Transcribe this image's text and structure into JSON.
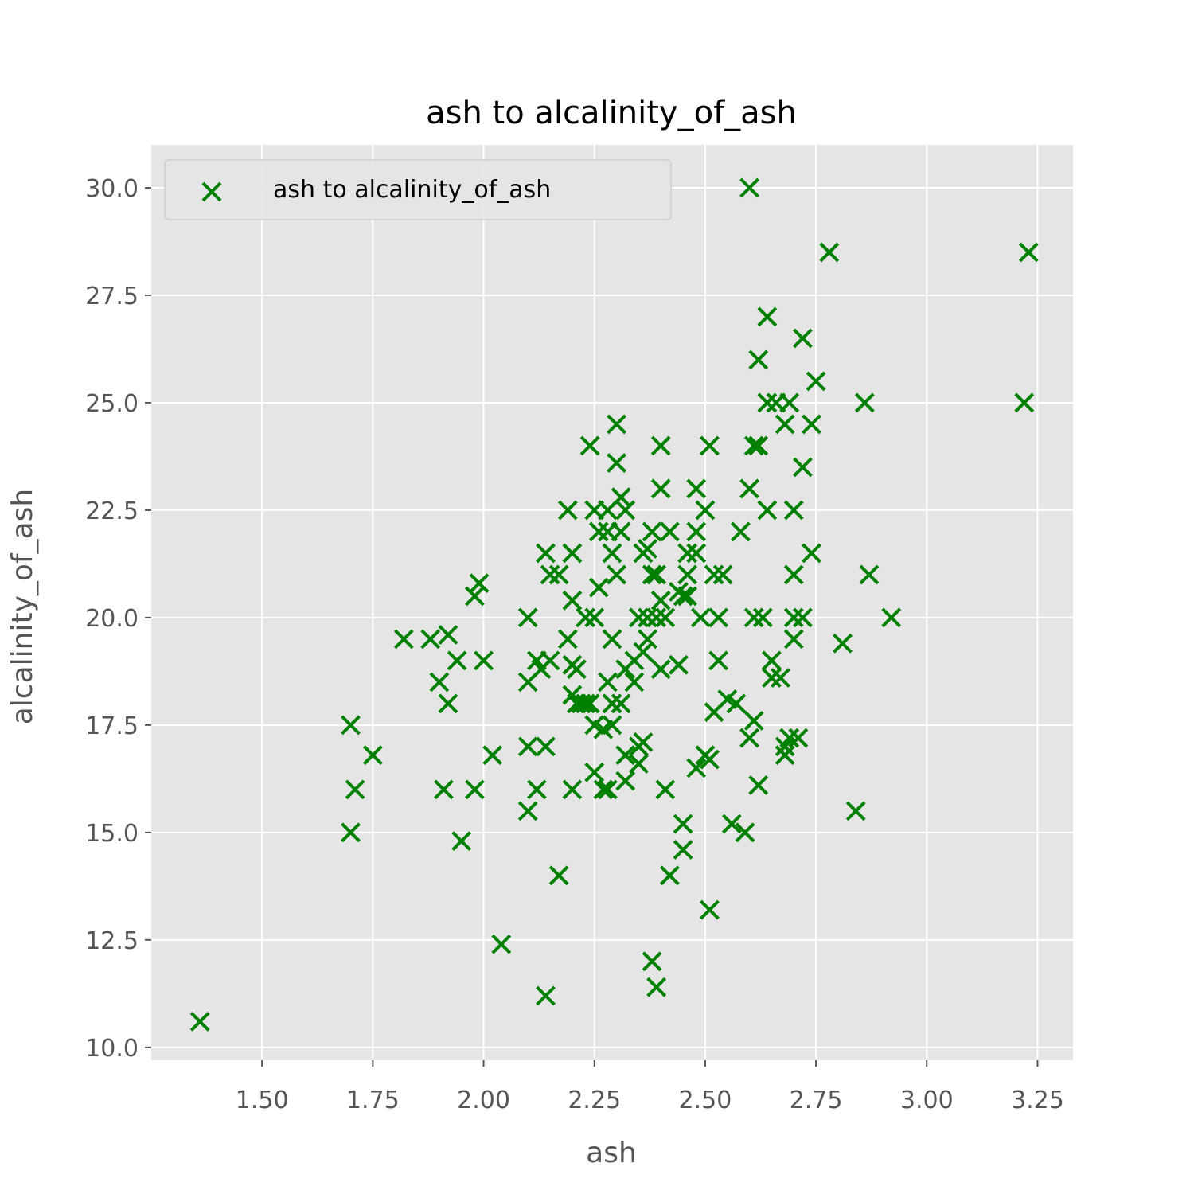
{
  "chart_data": {
    "type": "scatter",
    "title": "ash to alcalinity_of_ash",
    "xlabel": "ash",
    "ylabel": "alcalinity_of_ash",
    "xlim": [
      1.25,
      3.33
    ],
    "ylim": [
      9.7,
      31.0
    ],
    "xticks": [
      1.5,
      1.75,
      2.0,
      2.25,
      2.5,
      2.75,
      3.0,
      3.25
    ],
    "xtick_labels": [
      "1.50",
      "1.75",
      "2.00",
      "2.25",
      "2.50",
      "2.75",
      "3.00",
      "3.25"
    ],
    "yticks": [
      10.0,
      12.5,
      15.0,
      17.5,
      20.0,
      22.5,
      25.0,
      27.5,
      30.0
    ],
    "ytick_labels": [
      "10.0",
      "12.5",
      "15.0",
      "17.5",
      "20.0",
      "22.5",
      "25.0",
      "27.5",
      "30.0"
    ],
    "grid": true,
    "legend_position": "top-left",
    "series": [
      {
        "name": "ash to alcalinity_of_ash",
        "color": "#008000",
        "marker": "x",
        "points": [
          [
            1.36,
            10.6
          ],
          [
            2.6,
            30.0
          ],
          [
            2.78,
            28.5
          ],
          [
            3.23,
            28.5
          ],
          [
            3.22,
            25.0
          ],
          [
            2.64,
            27.0
          ],
          [
            2.72,
            26.5
          ],
          [
            2.62,
            26.0
          ],
          [
            2.75,
            25.5
          ],
          [
            2.86,
            25.0
          ],
          [
            2.64,
            25.0
          ],
          [
            2.66,
            25.0
          ],
          [
            2.69,
            25.0
          ],
          [
            2.3,
            24.5
          ],
          [
            2.68,
            24.5
          ],
          [
            2.74,
            24.5
          ],
          [
            2.24,
            24.0
          ],
          [
            2.4,
            24.0
          ],
          [
            2.51,
            24.0
          ],
          [
            2.61,
            24.0
          ],
          [
            2.62,
            24.0
          ],
          [
            2.3,
            23.6
          ],
          [
            2.72,
            23.5
          ],
          [
            2.4,
            23.0
          ],
          [
            2.48,
            23.0
          ],
          [
            2.6,
            23.0
          ],
          [
            2.31,
            22.8
          ],
          [
            2.19,
            22.5
          ],
          [
            2.25,
            22.5
          ],
          [
            2.28,
            22.5
          ],
          [
            2.32,
            22.5
          ],
          [
            2.5,
            22.5
          ],
          [
            2.64,
            22.5
          ],
          [
            2.7,
            22.5
          ],
          [
            2.26,
            22.0
          ],
          [
            2.28,
            22.0
          ],
          [
            2.31,
            22.0
          ],
          [
            2.38,
            22.0
          ],
          [
            2.42,
            22.0
          ],
          [
            2.48,
            22.0
          ],
          [
            2.58,
            22.0
          ],
          [
            2.14,
            21.5
          ],
          [
            2.2,
            21.5
          ],
          [
            2.29,
            21.5
          ],
          [
            2.36,
            21.5
          ],
          [
            2.46,
            21.5
          ],
          [
            2.48,
            21.5
          ],
          [
            2.74,
            21.5
          ],
          [
            2.37,
            21.6
          ],
          [
            2.15,
            21.0
          ],
          [
            2.17,
            21.0
          ],
          [
            2.3,
            21.0
          ],
          [
            2.38,
            21.0
          ],
          [
            2.39,
            21.0
          ],
          [
            2.46,
            21.0
          ],
          [
            2.52,
            21.0
          ],
          [
            2.54,
            21.0
          ],
          [
            2.7,
            21.0
          ],
          [
            2.87,
            21.0
          ],
          [
            1.99,
            20.8
          ],
          [
            2.26,
            20.7
          ],
          [
            1.98,
            20.5
          ],
          [
            2.2,
            20.4
          ],
          [
            2.4,
            20.4
          ],
          [
            2.44,
            20.6
          ],
          [
            2.45,
            20.5
          ],
          [
            2.46,
            20.5
          ],
          [
            2.1,
            20.0
          ],
          [
            2.23,
            20.0
          ],
          [
            2.25,
            20.0
          ],
          [
            2.35,
            20.0
          ],
          [
            2.37,
            20.0
          ],
          [
            2.39,
            20.0
          ],
          [
            2.41,
            20.0
          ],
          [
            2.49,
            20.0
          ],
          [
            2.53,
            20.0
          ],
          [
            2.61,
            20.0
          ],
          [
            2.63,
            20.0
          ],
          [
            2.7,
            20.0
          ],
          [
            2.72,
            20.0
          ],
          [
            2.92,
            20.0
          ],
          [
            1.82,
            19.5
          ],
          [
            1.88,
            19.5
          ],
          [
            1.92,
            19.6
          ],
          [
            2.19,
            19.5
          ],
          [
            2.29,
            19.5
          ],
          [
            2.37,
            19.5
          ],
          [
            2.7,
            19.5
          ],
          [
            2.81,
            19.4
          ],
          [
            1.94,
            19.0
          ],
          [
            2.0,
            19.0
          ],
          [
            2.12,
            19.0
          ],
          [
            2.15,
            19.0
          ],
          [
            2.2,
            18.9
          ],
          [
            2.34,
            19.0
          ],
          [
            2.36,
            19.2
          ],
          [
            2.53,
            19.0
          ],
          [
            2.65,
            19.0
          ],
          [
            2.13,
            18.8
          ],
          [
            2.21,
            18.8
          ],
          [
            2.4,
            18.8
          ],
          [
            2.44,
            18.9
          ],
          [
            2.32,
            18.8
          ],
          [
            2.1,
            18.5
          ],
          [
            1.9,
            18.5
          ],
          [
            2.28,
            18.5
          ],
          [
            2.34,
            18.5
          ],
          [
            2.65,
            18.6
          ],
          [
            2.67,
            18.6
          ],
          [
            2.2,
            18.2
          ],
          [
            1.92,
            18.0
          ],
          [
            2.21,
            18.0
          ],
          [
            2.22,
            18.0
          ],
          [
            2.23,
            18.0
          ],
          [
            2.24,
            18.0
          ],
          [
            2.29,
            18.0
          ],
          [
            2.31,
            18.0
          ],
          [
            2.55,
            18.1
          ],
          [
            2.57,
            18.0
          ],
          [
            2.52,
            17.8
          ],
          [
            2.61,
            17.6
          ],
          [
            1.7,
            17.5
          ],
          [
            2.25,
            17.5
          ],
          [
            2.27,
            17.4
          ],
          [
            2.29,
            17.5
          ],
          [
            2.6,
            17.2
          ],
          [
            2.69,
            17.2
          ],
          [
            2.71,
            17.2
          ],
          [
            2.36,
            17.1
          ],
          [
            2.35,
            17.0
          ],
          [
            2.1,
            17.0
          ],
          [
            2.14,
            17.0
          ],
          [
            2.68,
            17.0
          ],
          [
            1.75,
            16.8
          ],
          [
            2.02,
            16.8
          ],
          [
            2.32,
            16.8
          ],
          [
            2.5,
            16.8
          ],
          [
            2.51,
            16.7
          ],
          [
            2.68,
            16.8
          ],
          [
            2.35,
            16.6
          ],
          [
            2.48,
            16.5
          ],
          [
            2.25,
            16.4
          ],
          [
            2.32,
            16.2
          ],
          [
            2.27,
            16.0
          ],
          [
            1.71,
            16.0
          ],
          [
            1.91,
            16.0
          ],
          [
            1.98,
            16.0
          ],
          [
            2.12,
            16.0
          ],
          [
            2.2,
            16.0
          ],
          [
            2.28,
            16.0
          ],
          [
            2.41,
            16.0
          ],
          [
            2.62,
            16.1
          ],
          [
            2.1,
            15.5
          ],
          [
            2.84,
            15.5
          ],
          [
            2.45,
            15.2
          ],
          [
            2.56,
            15.2
          ],
          [
            1.7,
            15.0
          ],
          [
            2.59,
            15.0
          ],
          [
            1.95,
            14.8
          ],
          [
            2.45,
            14.6
          ],
          [
            2.17,
            14.0
          ],
          [
            2.42,
            14.0
          ],
          [
            2.51,
            13.2
          ],
          [
            2.04,
            12.4
          ],
          [
            2.38,
            12.0
          ],
          [
            2.39,
            11.4
          ],
          [
            2.14,
            11.2
          ]
        ]
      }
    ]
  }
}
